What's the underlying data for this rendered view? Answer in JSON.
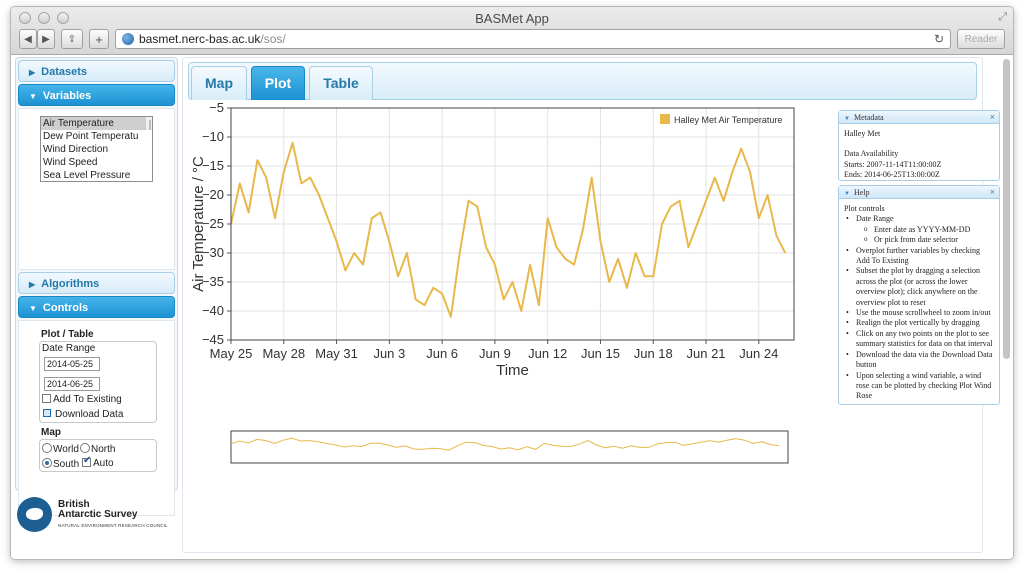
{
  "window": {
    "title": "BASMet App"
  },
  "browser": {
    "url_host": "basmet.nerc-bas.ac.uk",
    "url_path": "/sos/",
    "reader_label": "Reader",
    "back_glyph": "◀",
    "forward_glyph": "▶",
    "share_glyph": "⇪",
    "add_glyph": "+",
    "reload_glyph": "↻"
  },
  "sidebar": {
    "sections": [
      {
        "label": "Datasets",
        "expanded": false
      },
      {
        "label": "Variables",
        "expanded": true
      },
      {
        "label": "Algorithms",
        "expanded": false
      },
      {
        "label": "Controls",
        "expanded": true
      }
    ],
    "variables": [
      "Air Temperature",
      "Dew Point Temperatu",
      "Wind Direction",
      "Wind Speed",
      "Sea Level Pressure"
    ],
    "selected_variable": "Air Temperature",
    "controls": {
      "plot_table_title": "Plot / Table",
      "date_range_label": "Date Range",
      "start_date": "2014-05-25",
      "end_date": "2014-06-25",
      "add_to_existing_label": "Add To Existing",
      "add_to_existing_checked": false,
      "download_label": "Download Data",
      "map_title": "Map",
      "map_options": [
        "World",
        "North",
        "South"
      ],
      "map_selected": "South",
      "auto_label": "Auto",
      "auto_checked": true
    },
    "logo": {
      "line1": "British",
      "line2": "Antarctic Survey",
      "subtitle": "NATURAL ENVIRONMENT RESEARCH COUNCIL"
    }
  },
  "tabs": [
    {
      "label": "Map",
      "active": false
    },
    {
      "label": "Plot",
      "active": true
    },
    {
      "label": "Table",
      "active": false
    }
  ],
  "metadata_panel": {
    "title": "Metadata",
    "station": "Halley Met",
    "availability_label": "Data Availability",
    "starts": "Starts: 2007-11-14T11:00:00Z",
    "ends": "Ends: 2014-06-25T13:00:00Z"
  },
  "help_panel": {
    "title": "Help",
    "heading": "Plot controls",
    "items": [
      {
        "text": "Date Range",
        "sub": [
          "Enter date as YYYY-MM-DD",
          "Or pick from date selector"
        ]
      },
      {
        "text": "Overplot further variables by checking Add To Existing"
      },
      {
        "text": "Subset the plot by dragging a selection across the plot (or across the lower overview plot); click anywhere on the overview plot to reset"
      },
      {
        "text": "Use the mouse scrollwheel to zoom in/out"
      },
      {
        "text": "Realign the plot vertically by dragging"
      },
      {
        "text": "Click on any two points on the plot to see summary statistics for data on that interval"
      },
      {
        "text": "Download the data via the Download Data button"
      },
      {
        "text": "Upon selecting a wind variable, a wind rose can be plotted by checking Plot Wind Rose"
      }
    ]
  },
  "colors": {
    "series": "#e8b84a",
    "accent": "#1c92d2",
    "tab_text": "#2479a8"
  },
  "chart_data": {
    "type": "line",
    "xlabel": "Time",
    "ylabel": "Air Temperature / °C",
    "ylim": [
      -45,
      -5
    ],
    "yticks": [
      -5,
      -10,
      -15,
      -20,
      -25,
      -30,
      -35,
      -40,
      -45
    ],
    "xlim": [
      "2014-05-25",
      "2014-06-26"
    ],
    "xticks": [
      "May 25",
      "May 28",
      "May 31",
      "Jun 3",
      "Jun 6",
      "Jun 9",
      "Jun 12",
      "Jun 15",
      "Jun 18",
      "Jun 21",
      "Jun 24"
    ],
    "grid": true,
    "legend_position": "top-right",
    "series": [
      {
        "name": "Halley Met Air Temperature",
        "x": [
          "2014-05-25",
          "2014-05-25T12",
          "2014-05-26",
          "2014-05-26T12",
          "2014-05-27",
          "2014-05-27T12",
          "2014-05-28",
          "2014-05-28T12",
          "2014-05-29",
          "2014-05-29T12",
          "2014-05-30",
          "2014-05-30T12",
          "2014-05-31",
          "2014-05-31T12",
          "2014-06-01",
          "2014-06-01T12",
          "2014-06-02",
          "2014-06-02T12",
          "2014-06-03",
          "2014-06-03T12",
          "2014-06-04",
          "2014-06-04T12",
          "2014-06-05",
          "2014-06-05T12",
          "2014-06-06",
          "2014-06-06T12",
          "2014-06-07",
          "2014-06-07T12",
          "2014-06-08",
          "2014-06-08T12",
          "2014-06-09",
          "2014-06-09T12",
          "2014-06-10",
          "2014-06-10T12",
          "2014-06-11",
          "2014-06-11T12",
          "2014-06-12",
          "2014-06-12T12",
          "2014-06-13",
          "2014-06-13T12",
          "2014-06-14",
          "2014-06-14T12",
          "2014-06-15",
          "2014-06-15T12",
          "2014-06-16",
          "2014-06-16T12",
          "2014-06-17",
          "2014-06-17T12",
          "2014-06-18",
          "2014-06-18T12",
          "2014-06-19",
          "2014-06-19T12",
          "2014-06-20",
          "2014-06-20T12",
          "2014-06-21",
          "2014-06-21T12",
          "2014-06-22",
          "2014-06-22T12",
          "2014-06-23",
          "2014-06-23T12",
          "2014-06-24",
          "2014-06-24T12",
          "2014-06-25",
          "2014-06-25T12"
        ],
        "values": [
          -25,
          -18,
          -23,
          -14,
          -17,
          -24,
          -16,
          -11,
          -18,
          -17,
          -20,
          -24,
          -28,
          -33,
          -30,
          -32,
          -24,
          -23,
          -28,
          -34,
          -30,
          -38,
          -39,
          -36,
          -37,
          -41,
          -30,
          -21,
          -22,
          -29,
          -32,
          -38,
          -35,
          -40,
          -32,
          -39,
          -24,
          -29,
          -31,
          -32,
          -26,
          -17,
          -28,
          -35,
          -31,
          -36,
          -30,
          -34,
          -34,
          -25,
          -22,
          -21,
          -29,
          -25,
          -21,
          -17,
          -21,
          -16,
          -12,
          -16,
          -24,
          -20,
          -27,
          -30
        ]
      }
    ],
    "overview": {
      "type": "line",
      "ylim": [
        -45,
        -5
      ]
    }
  }
}
